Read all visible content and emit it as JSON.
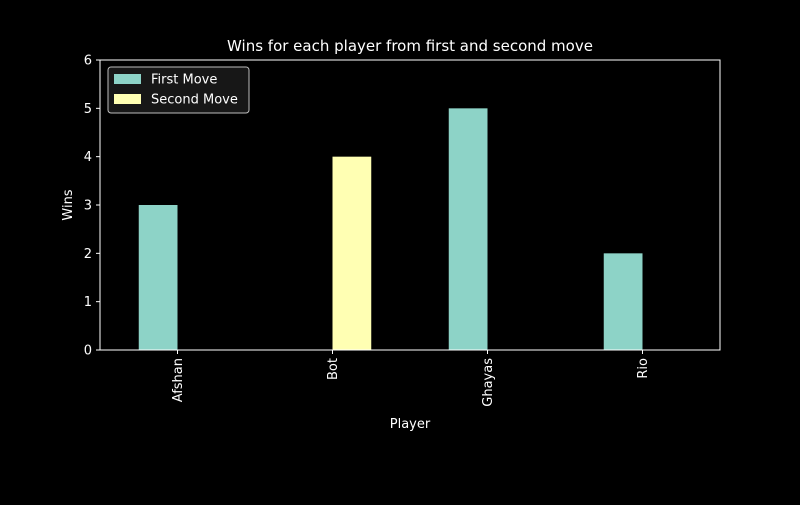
{
  "chart_data": {
    "type": "bar",
    "title": "Wins for each player from first and second move",
    "xlabel": "Player",
    "ylabel": "Wins",
    "categories": [
      "Afshan",
      "Bot",
      "Ghayas",
      "Rio"
    ],
    "series": [
      {
        "name": "First Move",
        "color": "#8dd3c7",
        "values": [
          3,
          0,
          5,
          2
        ]
      },
      {
        "name": "Second Move",
        "color": "#ffffb3",
        "values": [
          0,
          4,
          0,
          0
        ]
      }
    ],
    "ylim": [
      0,
      6
    ],
    "yticks": [
      0,
      1,
      2,
      3,
      4,
      5,
      6
    ],
    "grid": false,
    "legend_position": "top-left",
    "background": "#000000",
    "axis_color": "#ffffff"
  }
}
